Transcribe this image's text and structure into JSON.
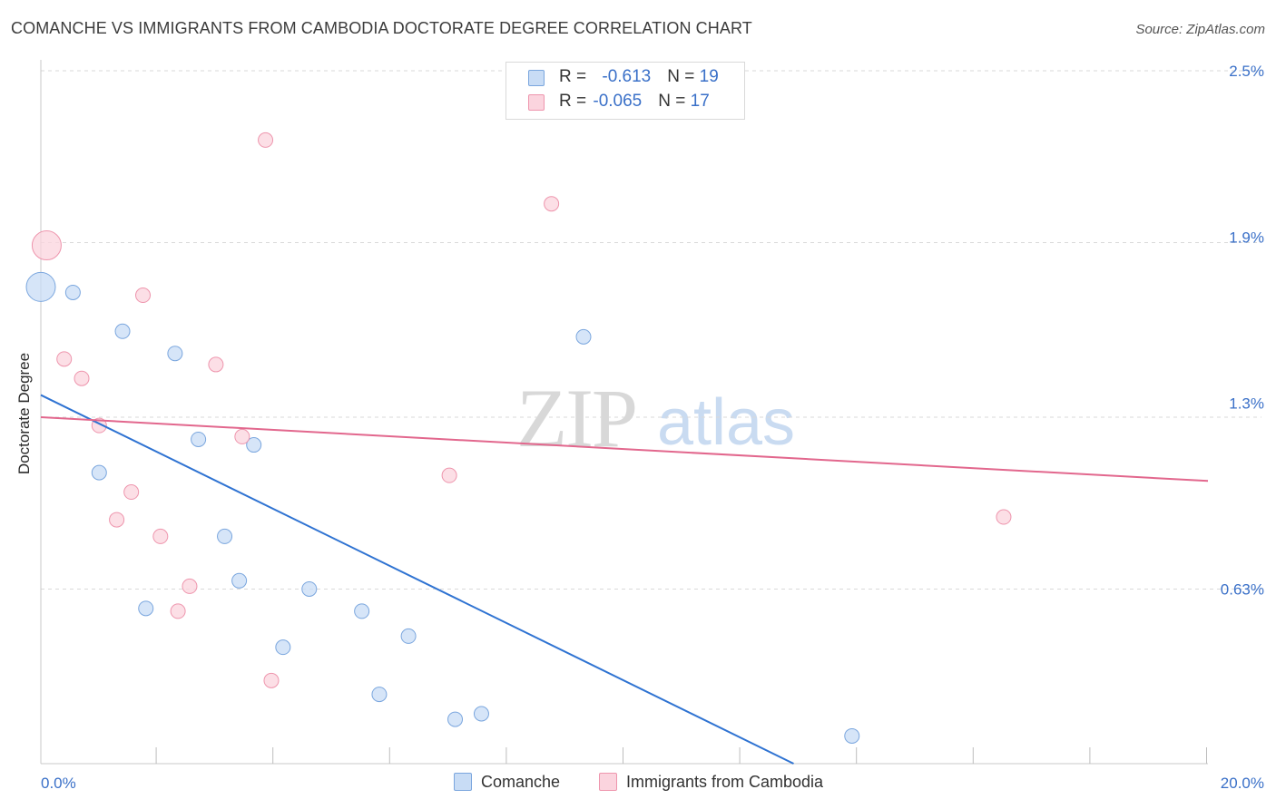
{
  "title": "COMANCHE VS IMMIGRANTS FROM CAMBODIA DOCTORATE DEGREE CORRELATION CHART",
  "source": "Source: ZipAtlas.com",
  "watermark": {
    "zip": "ZIP",
    "atlas": "atlas"
  },
  "colors": {
    "comanche_fill": "#c8dcf5",
    "comanche_stroke": "#7aa6de",
    "comanche_line": "#2f73d2",
    "cambodia_fill": "#fbd4de",
    "cambodia_stroke": "#ee95ad",
    "cambodia_line": "#e2678d",
    "grid": "#d9d9d9",
    "tick_label": "#3a70c8"
  },
  "legend": {
    "row1": {
      "r_label": "R = ",
      "r_value": "-0.613",
      "n_label": "N = ",
      "n_value": "19"
    },
    "row2": {
      "r_label": "R = ",
      "r_value": "-0.065",
      "n_label": "N = ",
      "n_value": "17"
    }
  },
  "chart_data": {
    "type": "scatter",
    "title": "COMANCHE VS IMMIGRANTS FROM CAMBODIA DOCTORATE DEGREE CORRELATION CHART",
    "xlabel": "",
    "ylabel": "Doctorate Degree",
    "xlim": [
      0,
      20
    ],
    "ylim": [
      0,
      2.5
    ],
    "x_tick_labels": [
      "0.0%",
      "20.0%"
    ],
    "y_ticks": [
      {
        "value": 0.63,
        "label": "0.63%"
      },
      {
        "value": 1.3,
        "label": "1.3%"
      },
      {
        "value": 1.9,
        "label": "1.9%"
      },
      {
        "value": 2.5,
        "label": "2.5%"
      }
    ],
    "y_gridlines": [
      0.63,
      1.25,
      1.88,
      2.5
    ],
    "x_minor_ticks": [
      2,
      4,
      6,
      8,
      10,
      12,
      14,
      16,
      18,
      20
    ],
    "series": [
      {
        "name": "Comanche",
        "points": [
          {
            "x": 0.0,
            "y": 1.72,
            "size": "large"
          },
          {
            "x": 0.55,
            "y": 1.7
          },
          {
            "x": 1.4,
            "y": 1.56
          },
          {
            "x": 2.3,
            "y": 1.48
          },
          {
            "x": 2.7,
            "y": 1.17
          },
          {
            "x": 3.65,
            "y": 1.15
          },
          {
            "x": 1.0,
            "y": 1.05
          },
          {
            "x": 3.15,
            "y": 0.82
          },
          {
            "x": 3.4,
            "y": 0.66
          },
          {
            "x": 4.6,
            "y": 0.63
          },
          {
            "x": 1.8,
            "y": 0.56
          },
          {
            "x": 5.5,
            "y": 0.55
          },
          {
            "x": 4.15,
            "y": 0.42
          },
          {
            "x": 6.3,
            "y": 0.46
          },
          {
            "x": 5.8,
            "y": 0.25
          },
          {
            "x": 7.1,
            "y": 0.16
          },
          {
            "x": 7.55,
            "y": 0.18
          },
          {
            "x": 9.3,
            "y": 1.54
          },
          {
            "x": 13.9,
            "y": 0.1
          }
        ],
        "trendline": {
          "x1": 0.0,
          "y1": 1.33,
          "x2": 12.9,
          "y2": 0.0
        }
      },
      {
        "name": "Immigrants from Cambodia",
        "points": [
          {
            "x": 0.1,
            "y": 1.87,
            "size": "large"
          },
          {
            "x": 3.85,
            "y": 2.25
          },
          {
            "x": 8.75,
            "y": 2.02
          },
          {
            "x": 1.75,
            "y": 1.69
          },
          {
            "x": 0.4,
            "y": 1.46
          },
          {
            "x": 0.7,
            "y": 1.39
          },
          {
            "x": 3.0,
            "y": 1.44
          },
          {
            "x": 1.0,
            "y": 1.22
          },
          {
            "x": 3.45,
            "y": 1.18
          },
          {
            "x": 1.55,
            "y": 0.98
          },
          {
            "x": 7.0,
            "y": 1.04
          },
          {
            "x": 1.3,
            "y": 0.88
          },
          {
            "x": 2.05,
            "y": 0.82
          },
          {
            "x": 2.55,
            "y": 0.64
          },
          {
            "x": 2.35,
            "y": 0.55
          },
          {
            "x": 3.95,
            "y": 0.3
          },
          {
            "x": 16.5,
            "y": 0.89
          }
        ],
        "trendline": {
          "x1": 0.0,
          "y1": 1.25,
          "x2": 20.0,
          "y2": 1.02
        }
      }
    ],
    "legend_position": "top-center"
  },
  "bottom_legend": {
    "series1": "Comanche",
    "series2": "Immigrants from Cambodia"
  }
}
